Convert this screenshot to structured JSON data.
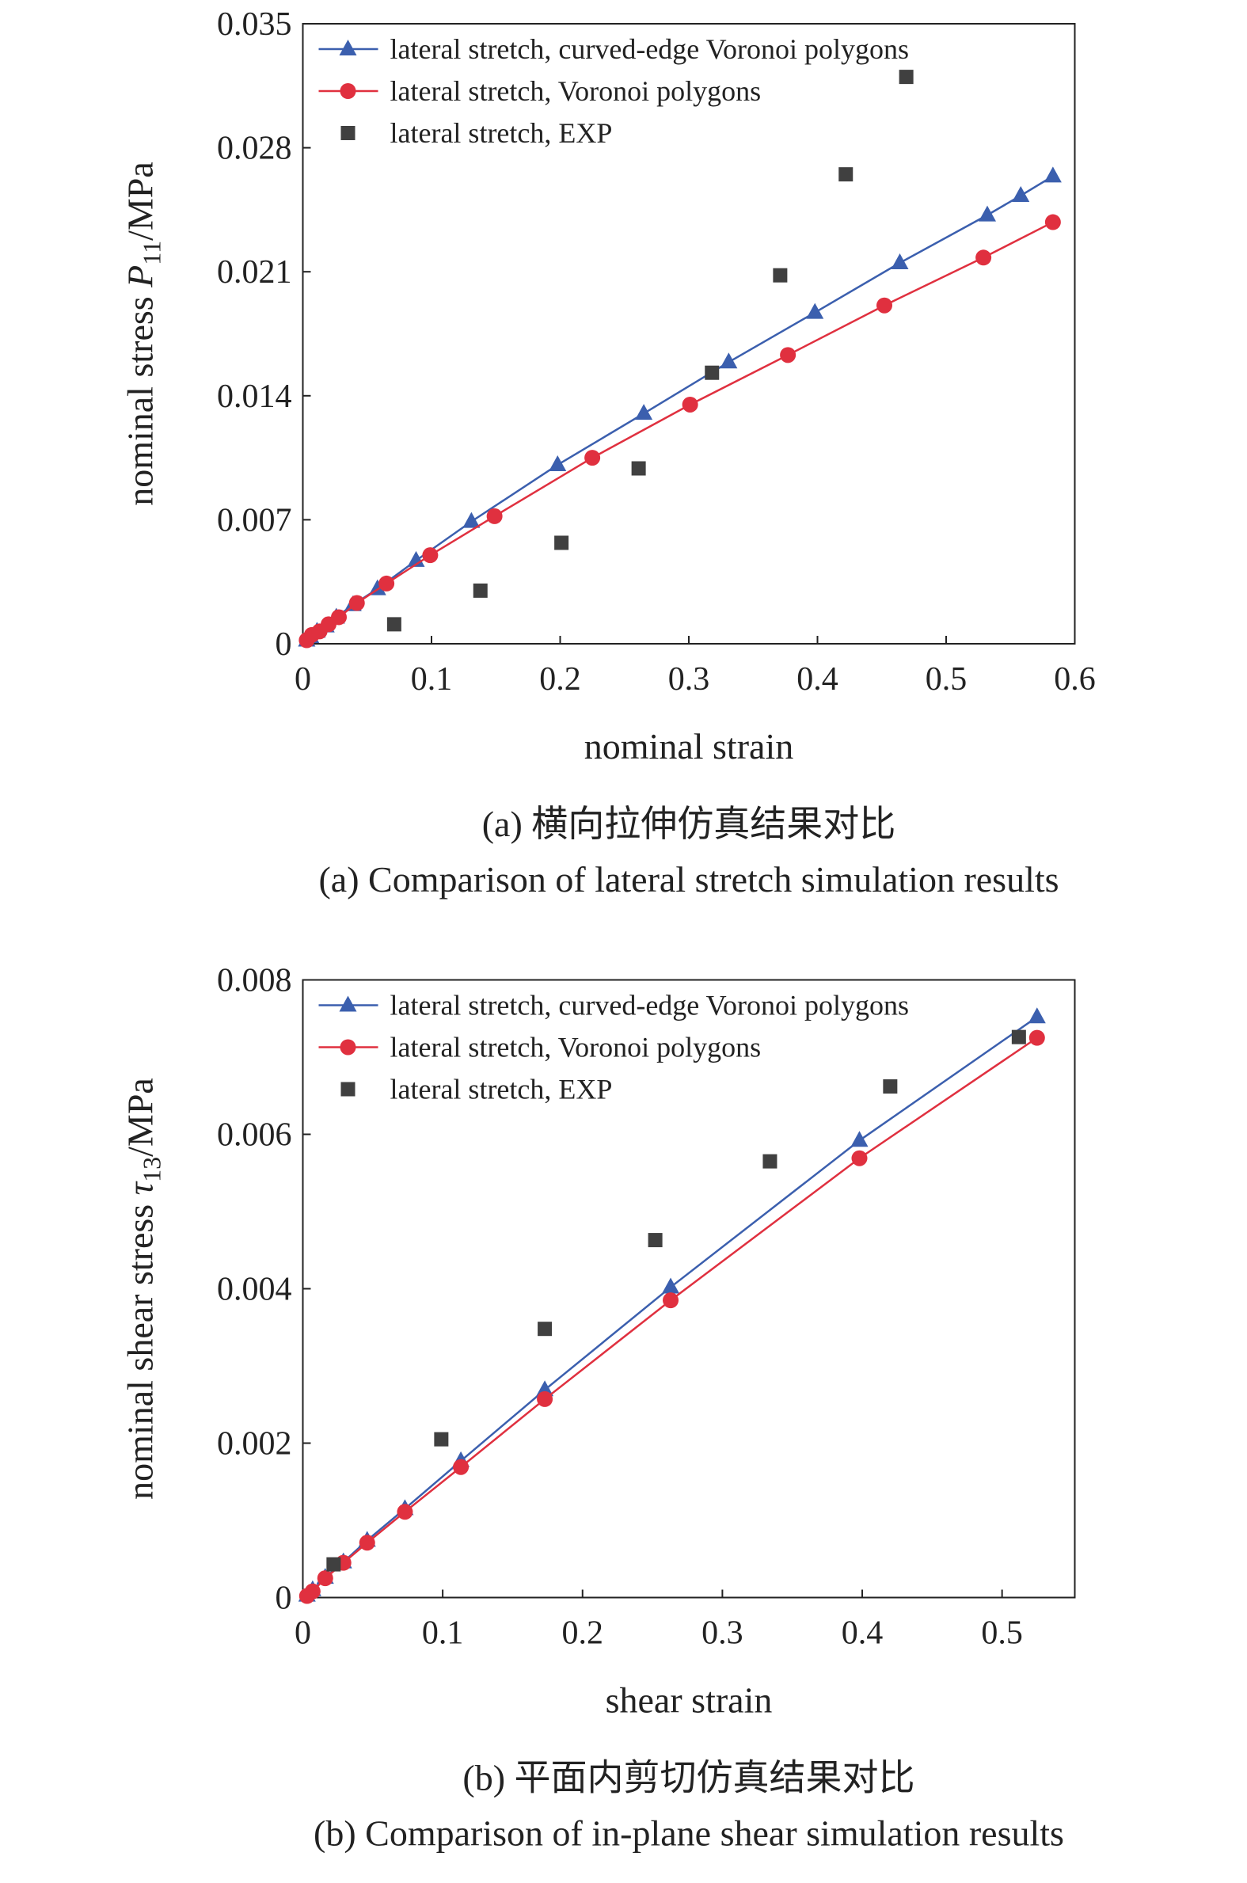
{
  "chart_data": [
    {
      "type": "line",
      "xlabel": "nominal strain",
      "ylabel": {
        "prefix": "nominal stress ",
        "symbol": "P",
        "subscript": "11",
        "suffix": "/MPa"
      },
      "captions": [
        "(a) 横向拉伸仿真结果对比",
        "(a) Comparison of lateral stretch simulation results"
      ],
      "xlim": [
        0,
        0.6
      ],
      "xticks": [
        0,
        0.1,
        0.2,
        0.3,
        0.4,
        0.5,
        0.6
      ],
      "ylim": [
        0,
        0.035
      ],
      "yticks": [
        0,
        0.007,
        0.014,
        0.021,
        0.028,
        0.035
      ],
      "legend": "upper left",
      "series": [
        {
          "name": "lateral stretch, curved-edge Voronoi polygons",
          "color": "#3b5fae",
          "marker": "triangle",
          "line": true,
          "x": [
            0.003,
            0.006,
            0.011,
            0.018,
            0.026,
            0.039,
            0.058,
            0.088,
            0.131,
            0.198,
            0.265,
            0.331,
            0.398,
            0.464,
            0.532,
            0.558,
            0.583
          ],
          "values": [
            0.0002,
            0.0004,
            0.0007,
            0.001,
            0.0015,
            0.0022,
            0.0031,
            0.0047,
            0.0069,
            0.0101,
            0.013,
            0.0159,
            0.0187,
            0.0215,
            0.0242,
            0.0253,
            0.0264
          ]
        },
        {
          "name": "lateral stretch, Voronoi polygons",
          "color": "#e0303f",
          "marker": "circle",
          "line": true,
          "x": [
            0.003,
            0.007,
            0.013,
            0.02,
            0.028,
            0.042,
            0.065,
            0.099,
            0.149,
            0.225,
            0.301,
            0.377,
            0.452,
            0.529,
            0.583
          ],
          "values": [
            0.0002,
            0.0005,
            0.0007,
            0.0011,
            0.0015,
            0.0023,
            0.0034,
            0.005,
            0.0072,
            0.0105,
            0.0135,
            0.0163,
            0.0191,
            0.0218,
            0.0238
          ]
        },
        {
          "name": "lateral stretch, EXP",
          "color": "#404040",
          "marker": "square",
          "line": false,
          "x": [
            0.071,
            0.138,
            0.201,
            0.261,
            0.318,
            0.371,
            0.422,
            0.469
          ],
          "values": [
            0.0011,
            0.003,
            0.0057,
            0.0099,
            0.0153,
            0.0208,
            0.0265,
            0.032
          ]
        }
      ]
    },
    {
      "type": "line",
      "xlabel": "shear strain",
      "ylabel": {
        "prefix": "nominal shear stress ",
        "symbol": "τ",
        "subscript": "13",
        "suffix": "/MPa"
      },
      "captions": [
        "(b) 平面内剪切仿真结果对比",
        "(b) Comparison of in-plane shear simulation results"
      ],
      "xlim": [
        0,
        0.552
      ],
      "xticks": [
        0,
        0.1,
        0.2,
        0.3,
        0.4,
        0.5
      ],
      "ylim": [
        0,
        0.008
      ],
      "yticks": [
        0,
        0.002,
        0.004,
        0.006,
        0.008
      ],
      "legend": "upper left",
      "series": [
        {
          "name": "lateral stretch, curved-edge Voronoi polygons",
          "color": "#3b5fae",
          "marker": "triangle",
          "line": true,
          "x": [
            0.003,
            0.007,
            0.016,
            0.029,
            0.046,
            0.073,
            0.113,
            0.173,
            0.263,
            0.398,
            0.525
          ],
          "values": [
            3e-05,
            0.0001,
            0.00026,
            0.00046,
            0.00074,
            0.00115,
            0.00177,
            0.00269,
            0.00402,
            0.00592,
            0.00752
          ]
        },
        {
          "name": "lateral stretch, Voronoi polygons",
          "color": "#e0303f",
          "marker": "circle",
          "line": true,
          "x": [
            0.003,
            0.007,
            0.016,
            0.029,
            0.046,
            0.073,
            0.113,
            0.173,
            0.263,
            0.398,
            0.525
          ],
          "values": [
            2e-05,
            8e-05,
            0.00025,
            0.00045,
            0.00071,
            0.00111,
            0.00169,
            0.00257,
            0.00385,
            0.00569,
            0.00725
          ]
        },
        {
          "name": "lateral stretch, EXP",
          "color": "#404040",
          "marker": "square",
          "line": false,
          "x": [
            0.022,
            0.099,
            0.173,
            0.252,
            0.334,
            0.42,
            0.512
          ],
          "values": [
            0.00043,
            0.00205,
            0.00348,
            0.00463,
            0.00565,
            0.00662,
            0.00726
          ]
        }
      ]
    }
  ]
}
